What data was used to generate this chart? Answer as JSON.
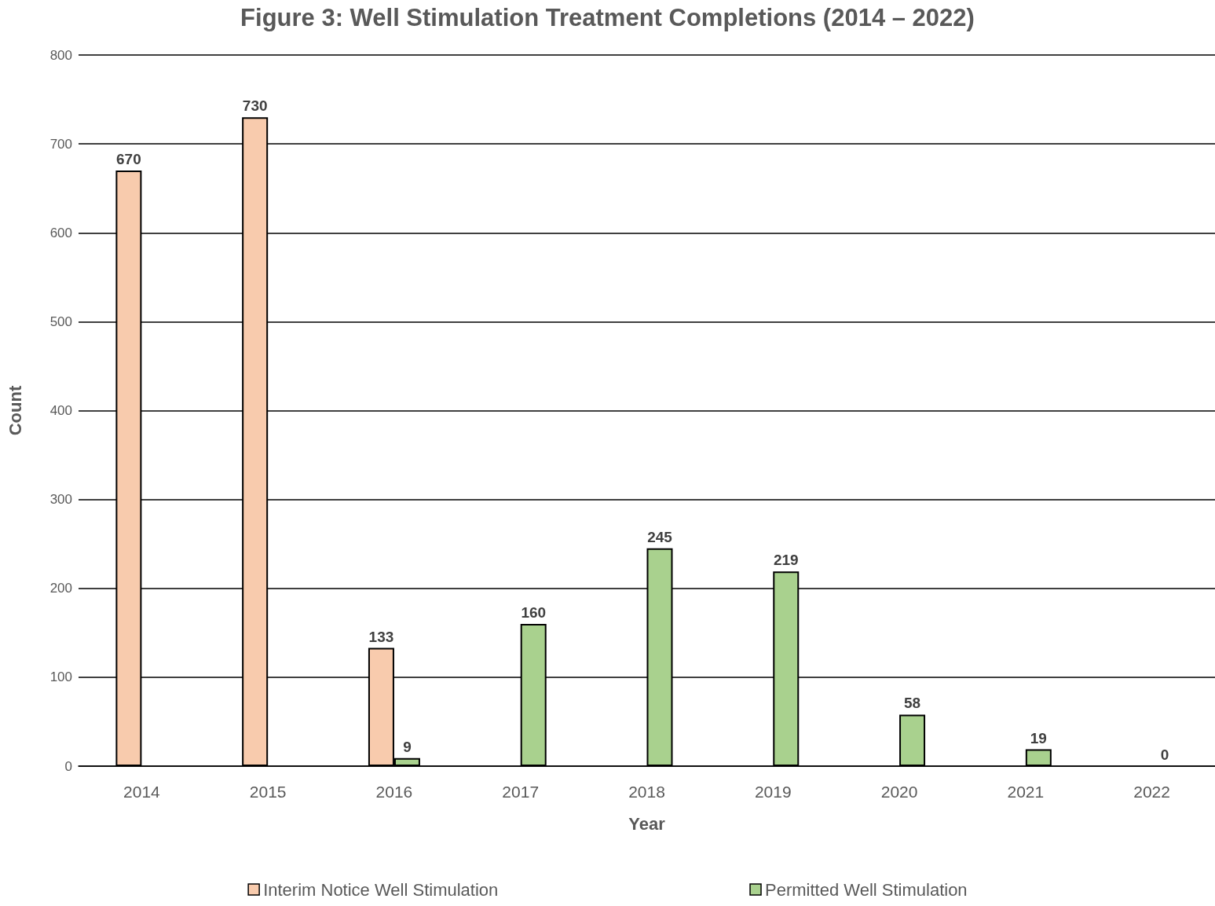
{
  "chart_data": {
    "type": "bar",
    "title": "Figure 3: Well Stimulation Treatment Completions (2014 – 2022)",
    "xlabel": "Year",
    "ylabel": "Count",
    "categories": [
      "2014",
      "2015",
      "2016",
      "2017",
      "2018",
      "2019",
      "2020",
      "2021",
      "2022"
    ],
    "series": [
      {
        "name": "Interim Notice Well Stimulation",
        "color": "#f8cbad",
        "values": [
          670,
          730,
          133,
          null,
          null,
          null,
          null,
          null,
          null
        ]
      },
      {
        "name": "Permitted Well Stimulation",
        "color": "#a9d18e",
        "values": [
          null,
          null,
          9,
          160,
          245,
          219,
          58,
          19,
          0
        ]
      }
    ],
    "ylim": [
      0,
      800
    ],
    "yticks": [
      0,
      100,
      200,
      300,
      400,
      500,
      600,
      700,
      800
    ],
    "grid": "y",
    "legend": "bottom",
    "data_labels": true
  }
}
